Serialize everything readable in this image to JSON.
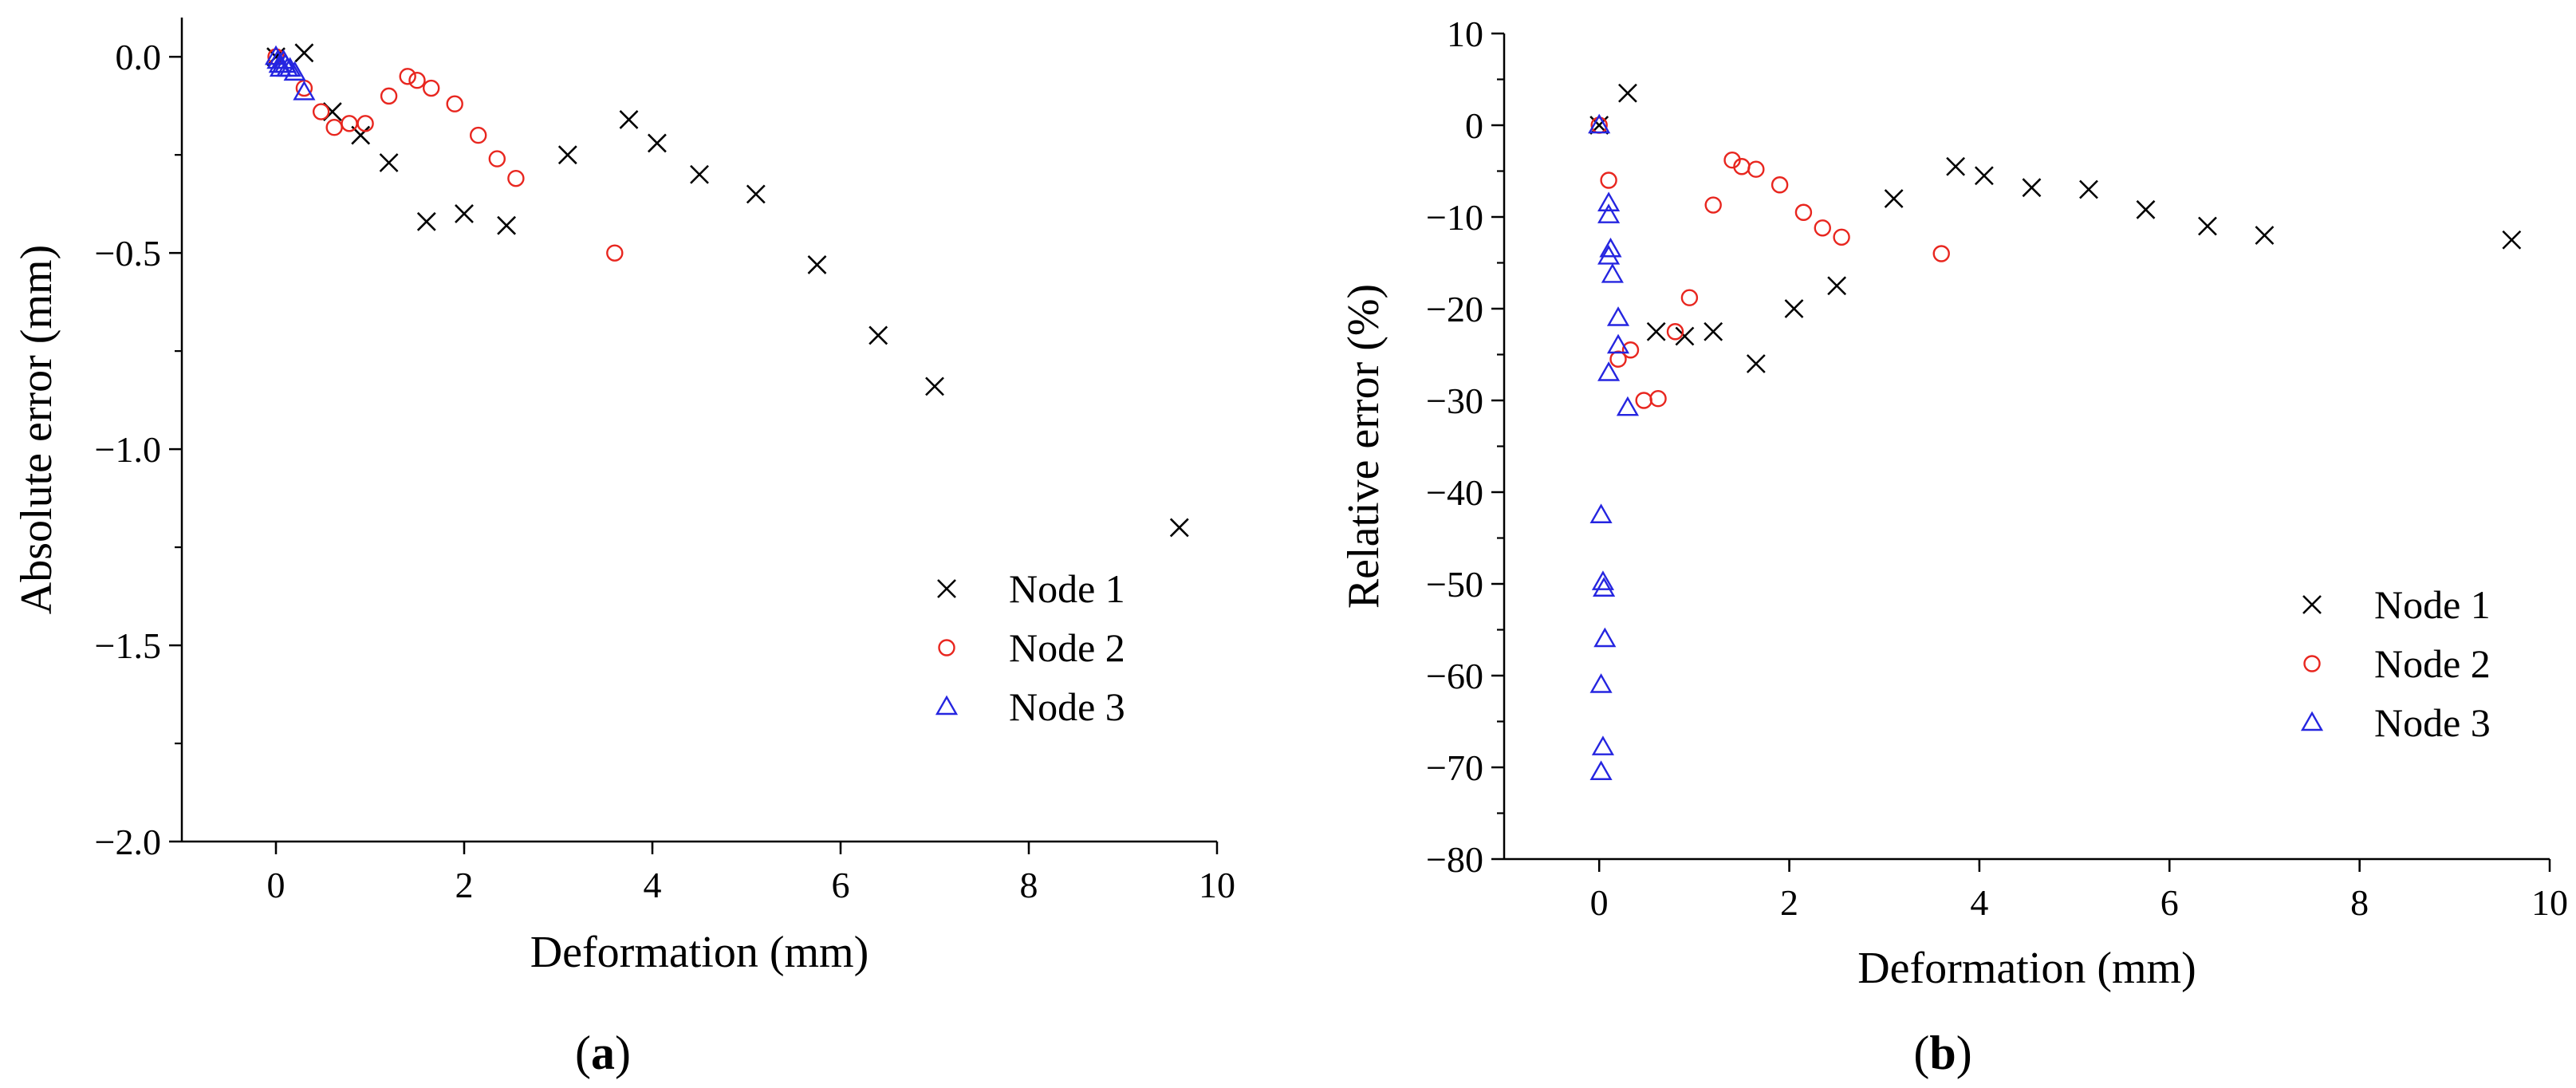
{
  "figure_labels": {
    "a": {
      "open": "(",
      "letter": "a",
      "close": ")"
    },
    "b": {
      "open": "(",
      "letter": "b",
      "close": ")"
    }
  },
  "colors": {
    "node1": "#000000",
    "node2": "#e8261f",
    "node3": "#2525e0",
    "axis": "#000000"
  },
  "chart_data": [
    {
      "id": "a",
      "type": "scatter",
      "title": "",
      "xlabel": "Deformation (mm)",
      "ylabel": "Absolute error (mm)",
      "xlim": [
        -1,
        10
      ],
      "ylim": [
        -2.0,
        0.1
      ],
      "xticks": [
        0,
        2,
        4,
        6,
        8,
        10
      ],
      "xtick_labels": [
        "0",
        "2",
        "4",
        "6",
        "8",
        "10"
      ],
      "yticks": [
        0.0,
        -0.5,
        -1.0,
        -1.5,
        -2.0
      ],
      "ytick_labels": [
        "0.0",
        "−0.5",
        "−1.0",
        "−1.5",
        "−2.0"
      ],
      "legend_position": "right-middle",
      "series": [
        {
          "name": "Node 1",
          "marker": "x",
          "color_key": "node1",
          "points": [
            [
              0.0,
              0.0
            ],
            [
              0.3,
              0.01
            ],
            [
              0.6,
              -0.14
            ],
            [
              0.9,
              -0.2
            ],
            [
              1.2,
              -0.27
            ],
            [
              1.6,
              -0.42
            ],
            [
              2.0,
              -0.4
            ],
            [
              2.45,
              -0.43
            ],
            [
              3.1,
              -0.25
            ],
            [
              3.75,
              -0.16
            ],
            [
              4.05,
              -0.22
            ],
            [
              4.5,
              -0.3
            ],
            [
              5.1,
              -0.35
            ],
            [
              5.75,
              -0.53
            ],
            [
              6.4,
              -0.71
            ],
            [
              7.0,
              -0.84
            ],
            [
              9.6,
              -1.2
            ]
          ]
        },
        {
          "name": "Node 2",
          "marker": "circle",
          "color_key": "node2",
          "points": [
            [
              0.0,
              0.0
            ],
            [
              0.3,
              -0.08
            ],
            [
              0.48,
              -0.14
            ],
            [
              0.62,
              -0.18
            ],
            [
              0.78,
              -0.17
            ],
            [
              0.95,
              -0.17
            ],
            [
              1.2,
              -0.1
            ],
            [
              1.4,
              -0.05
            ],
            [
              1.5,
              -0.06
            ],
            [
              1.65,
              -0.08
            ],
            [
              1.9,
              -0.12
            ],
            [
              2.15,
              -0.2
            ],
            [
              2.35,
              -0.26
            ],
            [
              2.55,
              -0.31
            ],
            [
              3.6,
              -0.5
            ]
          ]
        },
        {
          "name": "Node 3",
          "marker": "triangle",
          "color_key": "node3",
          "points": [
            [
              0.0,
              0.0
            ],
            [
              0.02,
              -0.01
            ],
            [
              0.04,
              -0.02
            ],
            [
              0.05,
              -0.03
            ],
            [
              0.08,
              -0.01
            ],
            [
              0.1,
              -0.02
            ],
            [
              0.12,
              -0.03
            ],
            [
              0.15,
              -0.03
            ],
            [
              0.2,
              -0.04
            ],
            [
              0.3,
              -0.09
            ]
          ]
        }
      ]
    },
    {
      "id": "b",
      "type": "scatter",
      "title": "",
      "xlabel": "Deformation (mm)",
      "ylabel": "Relative error (%)",
      "xlim": [
        -1,
        10
      ],
      "ylim": [
        -80,
        10
      ],
      "xticks": [
        0,
        2,
        4,
        6,
        8,
        10
      ],
      "xtick_labels": [
        "0",
        "2",
        "4",
        "6",
        "8",
        "10"
      ],
      "yticks": [
        10,
        0,
        -10,
        -20,
        -30,
        -40,
        -50,
        -60,
        -70,
        -80
      ],
      "ytick_labels": [
        "10",
        "0",
        "−10",
        "−20",
        "−30",
        "−40",
        "−50",
        "−60",
        "−70",
        "−80"
      ],
      "legend_position": "right-middle",
      "series": [
        {
          "name": "Node 1",
          "marker": "x",
          "color_key": "node1",
          "points": [
            [
              0.0,
              0.0
            ],
            [
              0.3,
              3.5
            ],
            [
              0.6,
              -22.5
            ],
            [
              0.9,
              -23
            ],
            [
              1.2,
              -22.5
            ],
            [
              1.65,
              -26
            ],
            [
              2.05,
              -20
            ],
            [
              2.5,
              -17.5
            ],
            [
              3.1,
              -8
            ],
            [
              3.75,
              -4.5
            ],
            [
              4.05,
              -5.5
            ],
            [
              4.55,
              -6.8
            ],
            [
              5.15,
              -7
            ],
            [
              5.75,
              -9.2
            ],
            [
              6.4,
              -11
            ],
            [
              7.0,
              -12
            ],
            [
              9.6,
              -12.5
            ]
          ]
        },
        {
          "name": "Node 2",
          "marker": "circle",
          "color_key": "node2",
          "points": [
            [
              0.0,
              0.0
            ],
            [
              0.1,
              -6
            ],
            [
              0.2,
              -25.5
            ],
            [
              0.33,
              -24.5
            ],
            [
              0.47,
              -30
            ],
            [
              0.62,
              -29.8
            ],
            [
              0.8,
              -22.5
            ],
            [
              0.95,
              -18.8
            ],
            [
              1.2,
              -8.7
            ],
            [
              1.4,
              -3.8
            ],
            [
              1.5,
              -4.5
            ],
            [
              1.65,
              -4.8
            ],
            [
              1.9,
              -6.5
            ],
            [
              2.15,
              -9.5
            ],
            [
              2.35,
              -11.2
            ],
            [
              2.55,
              -12.2
            ],
            [
              3.6,
              -14
            ]
          ]
        },
        {
          "name": "Node 3",
          "marker": "triangle",
          "color_key": "node3",
          "points": [
            [
              0.0,
              0.0
            ],
            [
              0.02,
              -42.5
            ],
            [
              0.04,
              -49.8
            ],
            [
              0.05,
              -50.5
            ],
            [
              0.06,
              -56
            ],
            [
              0.02,
              -61
            ],
            [
              0.04,
              -67.8
            ],
            [
              0.02,
              -70.5
            ],
            [
              0.1,
              -8.5
            ],
            [
              0.1,
              -9.8
            ],
            [
              0.12,
              -13.5
            ],
            [
              0.1,
              -14.3
            ],
            [
              0.14,
              -16.3
            ],
            [
              0.2,
              -21
            ],
            [
              0.2,
              -24
            ],
            [
              0.1,
              -27
            ],
            [
              0.3,
              -30.8
            ]
          ]
        }
      ]
    }
  ]
}
